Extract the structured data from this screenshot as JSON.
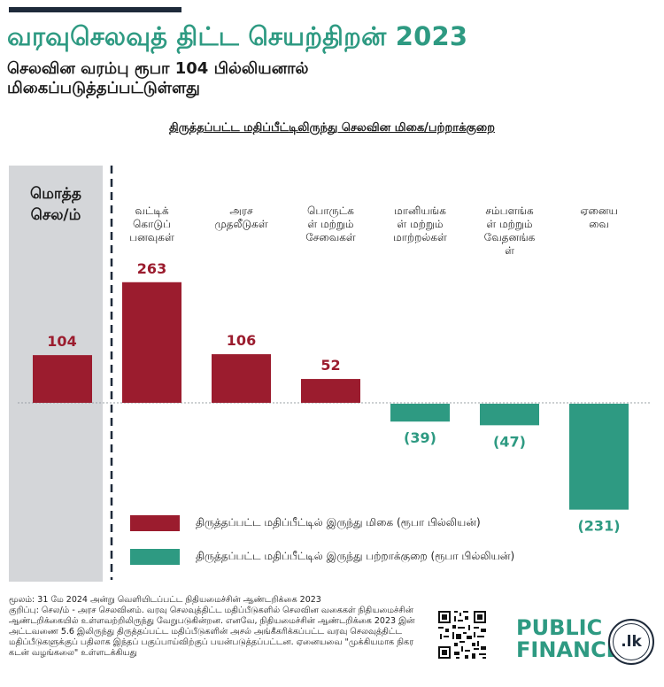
{
  "header": {
    "title": "வரவுசெலவுத் திட்ட செயற்திறன் 2023",
    "subtitle": "செலவின வரம்பு ரூபா 104 பில்லியனால் மிகைப்படுத்தப்பட்டுள்ளது"
  },
  "chart_data": {
    "type": "bar",
    "title": "திருத்தப்பட்ட மதிப்பீட்டிலிருந்து செலவின மிகை/பற்றாக்குறை",
    "total": {
      "label_lines": [
        "மொத்த",
        "செல/ம்"
      ],
      "value": 104,
      "value_label": "104"
    },
    "categories": [
      {
        "label_lines": [
          "வட்டிக்",
          "கொடுப்",
          "பனவுகள்"
        ],
        "value": 263,
        "value_label": "263"
      },
      {
        "label_lines": [
          "அரச",
          "முதலீடுகள்"
        ],
        "value": 106,
        "value_label": "106"
      },
      {
        "label_lines": [
          "பொருட்க",
          "ள் மற்றும்",
          "சேவைகள்"
        ],
        "value": 52,
        "value_label": "52"
      },
      {
        "label_lines": [
          "மானியங்க",
          "ள் மற்றும்",
          "மாற்றல்கள்"
        ],
        "value": -39,
        "value_label": "(39)"
      },
      {
        "label_lines": [
          "சம்பளங்க",
          "ள் மற்றும்",
          "வேதனங்க",
          "ள்"
        ],
        "value": -47,
        "value_label": "(47)"
      },
      {
        "label_lines": [
          "ஏனைய",
          "வை"
        ],
        "value": -231,
        "value_label": "(231)"
      }
    ],
    "legend": [
      {
        "label": "திருத்தப்பட்ட மதிப்பீட்டில் இருந்து மிகை (ரூபா பில்லியன்)",
        "color": "#9b1c2e"
      },
      {
        "label": "திருத்தப்பட்ட மதிப்பீட்டில் இருந்து பற்றாக்குறை (ரூபா பில்லியன்)",
        "color": "#2e9a82"
      }
    ],
    "colors": {
      "positive": "#9b1c2e",
      "negative": "#2e9a82",
      "total_panel": "#d4d6d9"
    },
    "ylim": [
      -231,
      263
    ]
  },
  "footer": {
    "lines": [
      "மூலம்: 31 மே 2024 அன்று வெளியிடப்பட்ட நிதியமைச்சின் ஆண்டறிக்கை 2023",
      "குறிப்பு: செல/ம் - அரச செலவினம். வரவு செலவுத்திட்ட மதிப்பீடுகளில் செலவின வகைகள் நிதியமைச்சின் ஆண்டறிக்கையில் உள்ளவற்றிலிருந்து வேறுபடுகின்றன. எனவே, நிதியமைச்சின் ஆண்டறிக்கை 2023 இன் அட்டவணை 5.6 இலிருந்து திருத்தப்பட்ட மதிப்பீடுகளின் அசல் அங்கீகரிக்கப்பட்ட வரவு செலவுத்திட்ட மதிப்பீடுகளுக்குப் பதிலாக இந்தப் பகுப்பாய்விற்குப் பயன்படுத்தப்பட்டன. ஏனையவை \"முக்கியமாக நிகர கடன் வழங்கலை\" உள்ளடக்கியது"
    ]
  },
  "brand": {
    "line1": "PUBLIC",
    "line2": "FINANCE",
    "seal_text": ".lk"
  }
}
